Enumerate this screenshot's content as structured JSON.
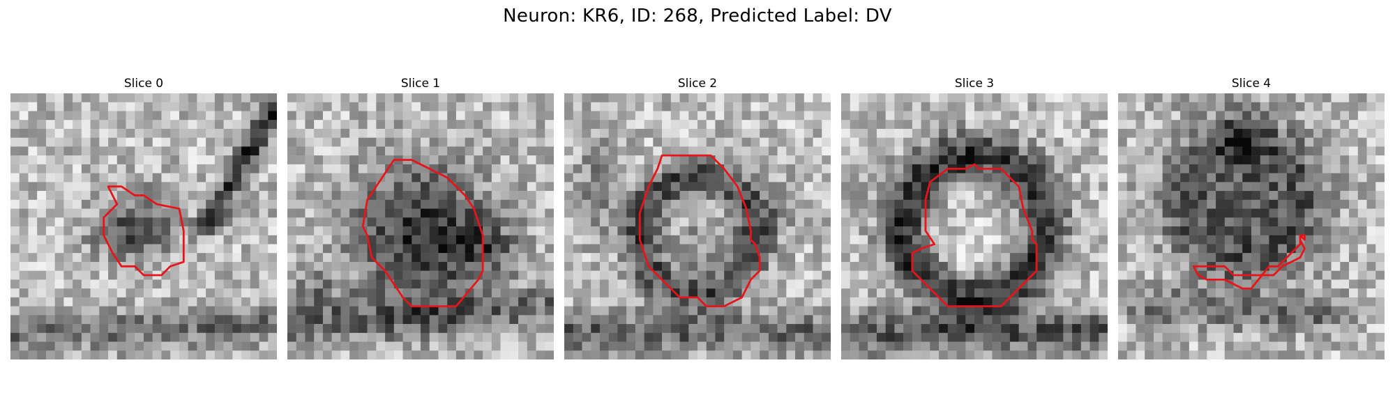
{
  "figure": {
    "title": "Neuron: KR6, ID: 268, Predicted Label: DV"
  },
  "panels": [
    {
      "title": "Slice 0"
    },
    {
      "title": "Slice 1"
    },
    {
      "title": "Slice 2"
    },
    {
      "title": "Slice 3"
    },
    {
      "title": "Slice 4"
    }
  ],
  "colors": {
    "contour": "#e8141a",
    "background": "#ffffff"
  }
}
